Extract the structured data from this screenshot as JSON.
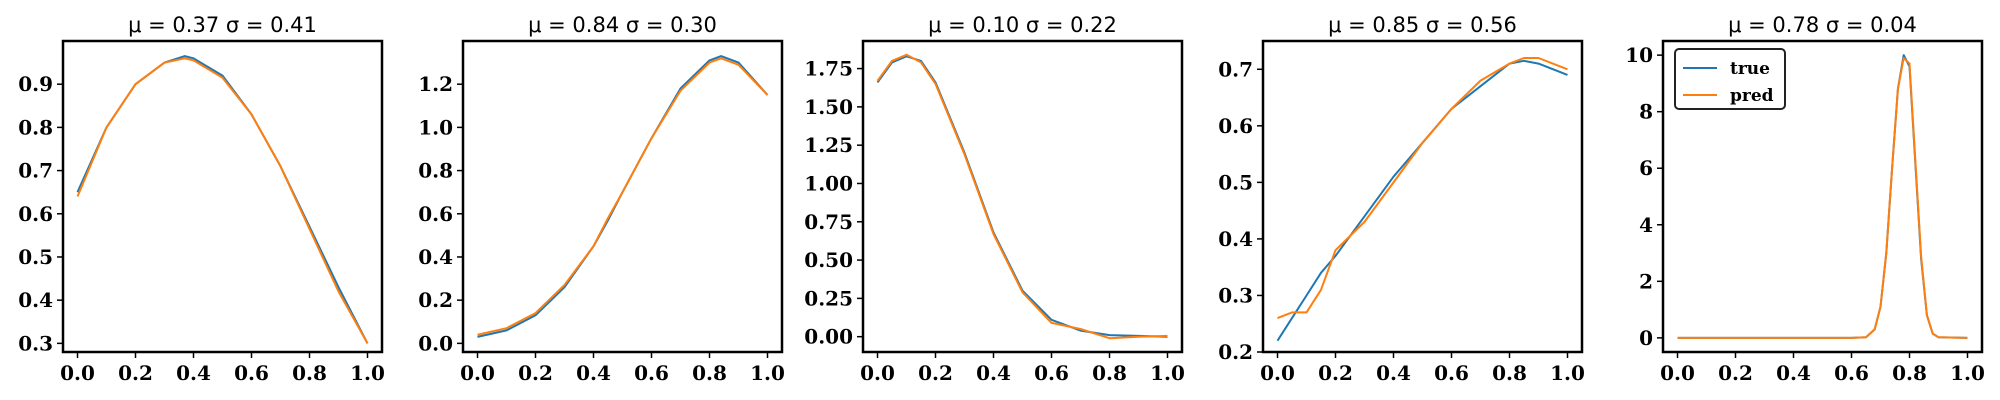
{
  "colors": {
    "true": "#1f77b4",
    "pred": "#ff7f0e"
  },
  "legend": {
    "entries": [
      "true",
      "pred"
    ],
    "placement": "upper-left",
    "panel": 4
  },
  "chart_data": [
    {
      "type": "line",
      "title": "μ = 0.37  σ = 0.41",
      "xlim": [
        -0.05,
        1.05
      ],
      "ylim": [
        0.28,
        1.0
      ],
      "xticks": [
        "0.0",
        "0.2",
        "0.4",
        "0.6",
        "0.8",
        "1.0"
      ],
      "yticks": [
        "0.3",
        "0.4",
        "0.5",
        "0.6",
        "0.7",
        "0.8",
        "0.9"
      ],
      "x": [
        0.0,
        0.1,
        0.2,
        0.3,
        0.37,
        0.4,
        0.5,
        0.6,
        0.7,
        0.8,
        0.9,
        1.0
      ],
      "series": [
        {
          "name": "true",
          "values": [
            0.65,
            0.8,
            0.9,
            0.95,
            0.965,
            0.96,
            0.92,
            0.83,
            0.71,
            0.57,
            0.43,
            0.3
          ]
        },
        {
          "name": "pred",
          "values": [
            0.64,
            0.8,
            0.9,
            0.95,
            0.96,
            0.955,
            0.915,
            0.83,
            0.71,
            0.565,
            0.42,
            0.3
          ]
        }
      ]
    },
    {
      "type": "line",
      "title": "μ = 0.84  σ = 0.30",
      "xlim": [
        -0.05,
        1.05
      ],
      "ylim": [
        -0.04,
        1.4
      ],
      "xticks": [
        "0.0",
        "0.2",
        "0.4",
        "0.6",
        "0.8",
        "1.0"
      ],
      "yticks": [
        "0.0",
        "0.2",
        "0.4",
        "0.6",
        "0.8",
        "1.0",
        "1.2"
      ],
      "x": [
        0.0,
        0.1,
        0.2,
        0.3,
        0.4,
        0.45,
        0.5,
        0.6,
        0.7,
        0.8,
        0.84,
        0.9,
        1.0
      ],
      "series": [
        {
          "name": "true",
          "values": [
            0.03,
            0.06,
            0.13,
            0.26,
            0.45,
            0.57,
            0.7,
            0.95,
            1.18,
            1.31,
            1.33,
            1.3,
            1.15
          ]
        },
        {
          "name": "pred",
          "values": [
            0.04,
            0.07,
            0.14,
            0.27,
            0.45,
            0.58,
            0.7,
            0.95,
            1.17,
            1.3,
            1.32,
            1.29,
            1.15
          ]
        }
      ]
    },
    {
      "type": "line",
      "title": "μ = 0.10  σ = 0.22",
      "xlim": [
        -0.05,
        1.05
      ],
      "ylim": [
        -0.1,
        1.93
      ],
      "xticks": [
        "0.0",
        "0.2",
        "0.4",
        "0.6",
        "0.8",
        "1.0"
      ],
      "yticks": [
        "0.00",
        "0.25",
        "0.50",
        "0.75",
        "1.00",
        "1.25",
        "1.50",
        "1.75"
      ],
      "x": [
        0.0,
        0.05,
        0.1,
        0.15,
        0.2,
        0.3,
        0.4,
        0.5,
        0.6,
        0.7,
        0.8,
        0.9,
        1.0
      ],
      "series": [
        {
          "name": "true",
          "values": [
            1.66,
            1.79,
            1.83,
            1.8,
            1.66,
            1.2,
            0.68,
            0.3,
            0.11,
            0.04,
            0.01,
            0.005,
            0.0
          ]
        },
        {
          "name": "pred",
          "values": [
            1.67,
            1.8,
            1.84,
            1.79,
            1.65,
            1.19,
            0.67,
            0.29,
            0.09,
            0.05,
            -0.01,
            0.0,
            0.005
          ]
        }
      ]
    },
    {
      "type": "line",
      "title": "μ = 0.85  σ = 0.56",
      "xlim": [
        -0.05,
        1.05
      ],
      "ylim": [
        0.2,
        0.75
      ],
      "xticks": [
        "0.0",
        "0.2",
        "0.4",
        "0.6",
        "0.8",
        "1.0"
      ],
      "yticks": [
        "0.2",
        "0.3",
        "0.4",
        "0.5",
        "0.6",
        "0.7"
      ],
      "x": [
        0.0,
        0.05,
        0.1,
        0.15,
        0.2,
        0.3,
        0.4,
        0.5,
        0.6,
        0.7,
        0.8,
        0.85,
        0.9,
        1.0
      ],
      "series": [
        {
          "name": "true",
          "values": [
            0.22,
            0.26,
            0.3,
            0.34,
            0.37,
            0.44,
            0.51,
            0.57,
            0.63,
            0.67,
            0.71,
            0.715,
            0.71,
            0.69
          ]
        },
        {
          "name": "pred",
          "values": [
            0.26,
            0.27,
            0.27,
            0.31,
            0.38,
            0.43,
            0.5,
            0.57,
            0.63,
            0.68,
            0.71,
            0.72,
            0.72,
            0.7
          ]
        }
      ]
    },
    {
      "type": "line",
      "title": "μ = 0.78  σ = 0.04",
      "xlim": [
        -0.05,
        1.05
      ],
      "ylim": [
        -0.5,
        10.5
      ],
      "xticks": [
        "0.0",
        "0.2",
        "0.4",
        "0.6",
        "0.8",
        "1.0"
      ],
      "yticks": [
        "0",
        "2",
        "4",
        "6",
        "8",
        "10"
      ],
      "x": [
        0.0,
        0.6,
        0.65,
        0.68,
        0.7,
        0.72,
        0.74,
        0.76,
        0.78,
        0.8,
        0.82,
        0.84,
        0.86,
        0.88,
        0.9,
        1.0
      ],
      "series": [
        {
          "name": "true",
          "values": [
            0,
            0,
            0.02,
            0.3,
            1.1,
            3.0,
            6.0,
            8.8,
            10.0,
            9.6,
            6.2,
            2.8,
            0.8,
            0.15,
            0.02,
            0
          ]
        },
        {
          "name": "pred",
          "values": [
            0,
            0,
            0.02,
            0.3,
            1.1,
            3.0,
            6.0,
            8.8,
            9.9,
            9.7,
            6.3,
            2.9,
            0.8,
            0.15,
            0.02,
            0
          ]
        }
      ]
    }
  ]
}
